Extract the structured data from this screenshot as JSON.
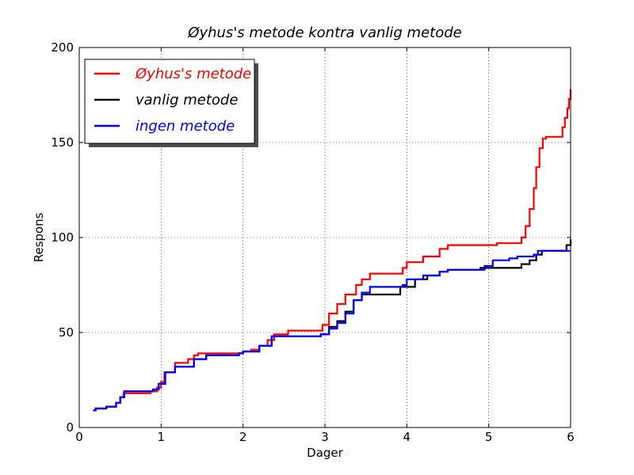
{
  "chart_data": {
    "type": "line",
    "title": "Øyhus's metode kontra vanlig metode",
    "xlabel": "Dager",
    "ylabel": "Respons",
    "xlim": [
      0,
      6
    ],
    "ylim": [
      0,
      200
    ],
    "xticks": [
      0,
      1,
      2,
      3,
      4,
      5,
      6
    ],
    "yticks": [
      0,
      50,
      100,
      150,
      200
    ],
    "grid": true,
    "legend_position": "top-left",
    "series": [
      {
        "name": "Øyhus's metode",
        "color": "#ff0000",
        "points": [
          [
            0.17,
            9
          ],
          [
            0.2,
            10
          ],
          [
            0.33,
            11
          ],
          [
            0.45,
            13
          ],
          [
            0.5,
            16
          ],
          [
            0.54,
            18
          ],
          [
            0.83,
            18
          ],
          [
            0.87,
            19
          ],
          [
            0.95,
            21
          ],
          [
            1.0,
            24
          ],
          [
            1.04,
            29
          ],
          [
            1.17,
            34
          ],
          [
            1.33,
            36
          ],
          [
            1.4,
            38
          ],
          [
            1.45,
            39
          ],
          [
            1.95,
            39
          ],
          [
            2.0,
            40
          ],
          [
            2.1,
            41
          ],
          [
            2.2,
            43
          ],
          [
            2.3,
            46
          ],
          [
            2.38,
            49
          ],
          [
            2.55,
            51
          ],
          [
            2.9,
            51
          ],
          [
            2.97,
            54
          ],
          [
            3.05,
            60
          ],
          [
            3.15,
            65
          ],
          [
            3.25,
            70
          ],
          [
            3.38,
            75
          ],
          [
            3.45,
            78
          ],
          [
            3.55,
            81
          ],
          [
            3.95,
            84
          ],
          [
            4.0,
            87
          ],
          [
            4.2,
            90
          ],
          [
            4.4,
            94
          ],
          [
            4.5,
            96
          ],
          [
            4.95,
            96
          ],
          [
            5.1,
            97
          ],
          [
            5.35,
            97
          ],
          [
            5.4,
            100
          ],
          [
            5.45,
            106
          ],
          [
            5.5,
            115
          ],
          [
            5.55,
            126
          ],
          [
            5.58,
            137
          ],
          [
            5.62,
            147
          ],
          [
            5.66,
            152
          ],
          [
            5.7,
            153
          ],
          [
            5.85,
            153
          ],
          [
            5.9,
            158
          ],
          [
            5.93,
            163
          ],
          [
            5.96,
            168
          ],
          [
            5.98,
            173
          ],
          [
            6.0,
            178
          ]
        ]
      },
      {
        "name": "vanlig metode",
        "color": "#000000",
        "points": [
          [
            0.17,
            9
          ],
          [
            0.2,
            10
          ],
          [
            0.33,
            11
          ],
          [
            0.45,
            13
          ],
          [
            0.5,
            16
          ],
          [
            0.55,
            19
          ],
          [
            0.85,
            19
          ],
          [
            0.9,
            20
          ],
          [
            0.97,
            23
          ],
          [
            1.05,
            29
          ],
          [
            1.17,
            32
          ],
          [
            1.4,
            36
          ],
          [
            1.55,
            38
          ],
          [
            1.95,
            39
          ],
          [
            2.0,
            40
          ],
          [
            2.2,
            43
          ],
          [
            2.35,
            48
          ],
          [
            2.95,
            49
          ],
          [
            3.05,
            53
          ],
          [
            3.15,
            56
          ],
          [
            3.25,
            61
          ],
          [
            3.35,
            67
          ],
          [
            3.45,
            70
          ],
          [
            3.85,
            70
          ],
          [
            3.92,
            74
          ],
          [
            4.1,
            78
          ],
          [
            4.25,
            80
          ],
          [
            4.4,
            82
          ],
          [
            4.5,
            83
          ],
          [
            4.9,
            84
          ],
          [
            5.3,
            84
          ],
          [
            5.4,
            86
          ],
          [
            5.5,
            88
          ],
          [
            5.58,
            91
          ],
          [
            5.65,
            93
          ],
          [
            5.95,
            96
          ],
          [
            6.0,
            99
          ]
        ]
      },
      {
        "name": "ingen metode",
        "color": "#0000ff",
        "points": [
          [
            0.17,
            9
          ],
          [
            0.2,
            10
          ],
          [
            0.33,
            11
          ],
          [
            0.45,
            13
          ],
          [
            0.5,
            16
          ],
          [
            0.55,
            19
          ],
          [
            0.85,
            19
          ],
          [
            0.9,
            20
          ],
          [
            0.97,
            23
          ],
          [
            1.05,
            29
          ],
          [
            1.17,
            32
          ],
          [
            1.4,
            36
          ],
          [
            1.55,
            38
          ],
          [
            1.95,
            39
          ],
          [
            2.0,
            40
          ],
          [
            2.2,
            43
          ],
          [
            2.35,
            48
          ],
          [
            2.95,
            49
          ],
          [
            3.05,
            52
          ],
          [
            3.15,
            55
          ],
          [
            3.25,
            60
          ],
          [
            3.35,
            67
          ],
          [
            3.45,
            71
          ],
          [
            3.55,
            74
          ],
          [
            3.95,
            75
          ],
          [
            4.0,
            78
          ],
          [
            4.2,
            80
          ],
          [
            4.4,
            82
          ],
          [
            4.5,
            83
          ],
          [
            4.9,
            83
          ],
          [
            4.95,
            85
          ],
          [
            5.05,
            88
          ],
          [
            5.25,
            89
          ],
          [
            5.35,
            90
          ],
          [
            5.55,
            91
          ],
          [
            5.6,
            93
          ],
          [
            6.0,
            93
          ]
        ]
      }
    ]
  }
}
